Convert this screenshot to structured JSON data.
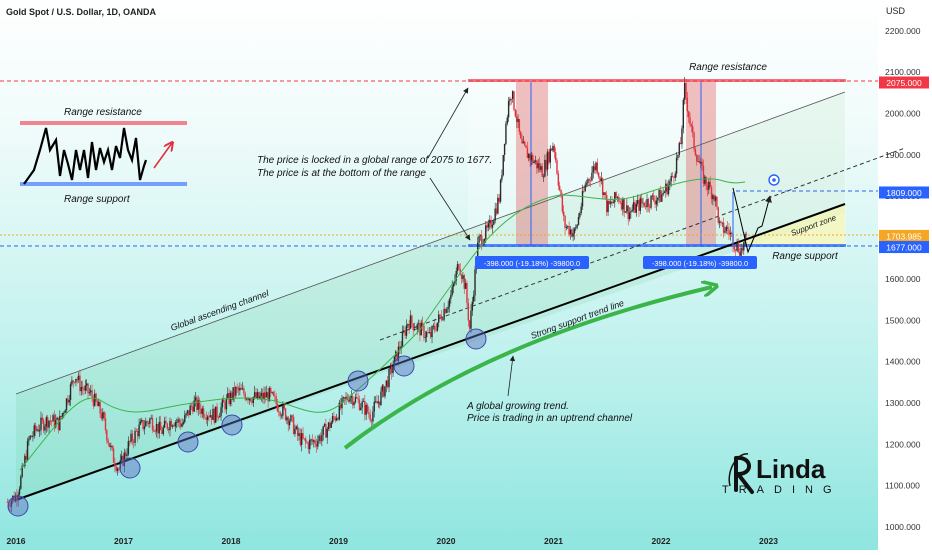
{
  "header": {
    "title": "Gold Spot / U.S. Dollar, 1D, OANDA",
    "currency": "USD"
  },
  "chart_data": {
    "type": "line",
    "title": "Gold Spot / U.S. Dollar, 1D, OANDA",
    "xlabel": "",
    "ylabel": "",
    "x_ticks": [
      "2016",
      "2017",
      "2018",
      "2019",
      "2020",
      "2021",
      "2022",
      "2023"
    ],
    "y_ticks": [
      1000,
      1100,
      1200,
      1300,
      1400,
      1500,
      1600,
      1700,
      1800,
      1900,
      2000,
      2100,
      2200
    ],
    "y_tick_labels": [
      "1000.000",
      "1100.000",
      "1200.000",
      "1300.000",
      "1400.000",
      "1500.000",
      "1600.000",
      "1700.000",
      "1800.000",
      "1900.000",
      "2000.000",
      "2100.000",
      "2200.000"
    ],
    "xlim": [
      2016.0,
      2023.8
    ],
    "ylim": [
      990,
      2235
    ],
    "price_labels": [
      {
        "value": 2075,
        "text": "2075.000",
        "color": "#f23645"
      },
      {
        "value": 1809,
        "text": "1809.000",
        "color": "#2962ff"
      },
      {
        "value": 1703.985,
        "text": "1703.985",
        "color": "#f5a623"
      },
      {
        "value": 1677,
        "text": "1677.000",
        "color": "#2962ff"
      }
    ],
    "series": [
      {
        "x": [
          2015.92,
          2016.0,
          2016.05,
          2016.12,
          2016.2,
          2016.3,
          2016.4,
          2016.5,
          2016.55,
          2016.6,
          2016.7,
          2016.8,
          2016.9,
          2016.96,
          2017.05,
          2017.15,
          2017.25,
          2017.35,
          2017.45,
          2017.55,
          2017.65,
          2017.75,
          2017.85,
          2017.95,
          2018.05,
          2018.15,
          2018.25,
          2018.35,
          2018.45,
          2018.55,
          2018.62,
          2018.7,
          2018.8,
          2018.9,
          2019.0,
          2019.1,
          2019.2,
          2019.3,
          2019.4,
          2019.45,
          2019.55,
          2019.65,
          2019.75,
          2019.85,
          2019.95,
          2020.05,
          2020.12,
          2020.18,
          2020.22,
          2020.3,
          2020.4,
          2020.5,
          2020.55,
          2020.6,
          2020.65,
          2020.7,
          2020.8,
          2020.9,
          2021.0,
          2021.1,
          2021.2,
          2021.3,
          2021.4,
          2021.45,
          2021.5,
          2021.6,
          2021.7,
          2021.8,
          2021.9,
          2022.0,
          2022.1,
          2022.18,
          2022.22,
          2022.3,
          2022.4,
          2022.5,
          2022.55,
          2022.62,
          2022.7,
          2022.75,
          2022.8
        ],
        "values": [
          1060,
          1075,
          1120,
          1210,
          1240,
          1260,
          1250,
          1330,
          1370,
          1340,
          1320,
          1270,
          1170,
          1140,
          1200,
          1240,
          1260,
          1230,
          1260,
          1250,
          1300,
          1280,
          1270,
          1300,
          1330,
          1320,
          1310,
          1320,
          1290,
          1260,
          1220,
          1200,
          1210,
          1240,
          1280,
          1320,
          1300,
          1270,
          1320,
          1350,
          1420,
          1500,
          1480,
          1460,
          1510,
          1560,
          1640,
          1580,
          1480,
          1690,
          1720,
          1800,
          1960,
          2060,
          2000,
          1920,
          1890,
          1860,
          1930,
          1730,
          1710,
          1830,
          1880,
          1830,
          1770,
          1800,
          1760,
          1780,
          1790,
          1800,
          1840,
          1920,
          2060,
          1930,
          1840,
          1800,
          1720,
          1720,
          1680,
          1670,
          1700
        ],
        "color": "#e0313d"
      }
    ],
    "annotations": [
      "Range resistance",
      "Range support",
      "The price is locked in a global range of 2075 to 1677.",
      "The price is at the bottom of the range",
      "Global ascending channel",
      "Strong support trend line",
      "Support zone",
      "A global growing trend.",
      "Price is trading in an uptrend channel"
    ],
    "measure_labels": [
      "-398.000 (-19.18%) -39800.0",
      "-398.000 (-19.18%) -39800.0"
    ],
    "inset": {
      "resistance_label": "Range resistance",
      "support_label": "Range support"
    },
    "grid": false,
    "legend": "none"
  },
  "annotations_text": {
    "range_resistance": "Range resistance",
    "range_support": "Range support",
    "locked_line1": "The price is locked in a global range of 2075 to 1677.",
    "locked_line2": "The price is at the bottom of the range",
    "channel": "Global ascending channel",
    "trendline": "Strong support trend line",
    "support_zone": "Support zone",
    "trend_line1": "A global growing trend.",
    "trend_line2": "Price is trading in an uptrend channel",
    "measure1": "-398.000 (-19.18%) -39800.0",
    "measure2": "-398.000 (-19.18%) -39800.0",
    "inset_resistance": "Range resistance",
    "inset_support": "Range support"
  },
  "logo": {
    "name": "Linda",
    "sub": "TRADING"
  },
  "colors": {
    "background_top": "#ffffff",
    "background_bottom": "#7fe0dc",
    "candle_red": "#e0313d",
    "resistance": "#f23645",
    "support": "#2962ff",
    "trend_green": "#3bb54a",
    "orange": "#f5a623"
  }
}
